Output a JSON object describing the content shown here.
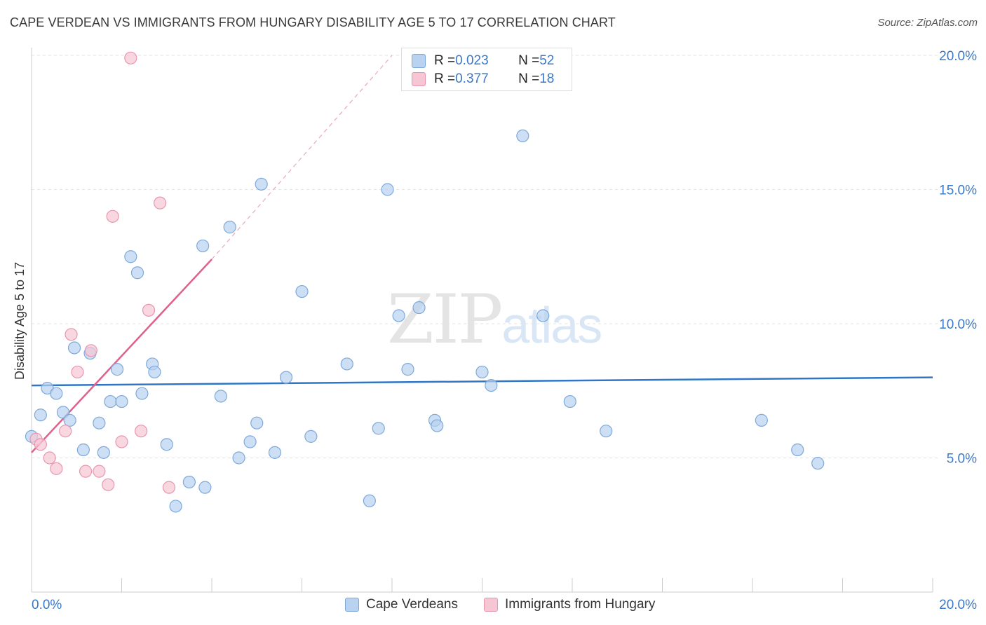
{
  "title": "CAPE VERDEAN VS IMMIGRANTS FROM HUNGARY DISABILITY AGE 5 TO 17 CORRELATION CHART",
  "source": "Source: ZipAtlas.com",
  "watermark": {
    "part1": "ZIP",
    "part2": "atlas"
  },
  "colors": {
    "blue_fill": "#b8d2f0",
    "blue_stroke": "#7ea9dc",
    "blue_line": "#2f76c6",
    "pink_fill": "#f7c6d4",
    "pink_stroke": "#e896b0",
    "pink_line": "#e0608a",
    "axis_text": "#3a78c9",
    "grid": "#e3e3e3"
  },
  "stats": [
    {
      "r_label": "R = ",
      "r_value": "0.023",
      "n_label": "N = ",
      "n_value": "52"
    },
    {
      "r_label": "R = ",
      "r_value": "0.377",
      "n_label": "N = ",
      "n_value": "18"
    }
  ],
  "legend": [
    "Cape Verdeans",
    "Immigrants from Hungary"
  ],
  "chart_data": {
    "type": "scatter",
    "title": "CAPE VERDEAN VS IMMIGRANTS FROM HUNGARY DISABILITY AGE 5 TO 17 CORRELATION CHART",
    "xlabel": "",
    "ylabel": "Disability Age 5 to 17",
    "xlim": [
      0,
      20
    ],
    "ylim": [
      0,
      20.5
    ],
    "x_tick_labels": [
      "0.0%",
      "20.0%"
    ],
    "y_ticks": [
      5,
      10,
      15,
      20
    ],
    "y_tick_labels": [
      "5.0%",
      "10.0%",
      "15.0%",
      "20.0%"
    ],
    "grid": true,
    "legend_position": "bottom",
    "series": [
      {
        "name": "Cape Verdeans",
        "color": "blue",
        "trend": {
          "x": [
            0,
            20
          ],
          "y": [
            7.7,
            8.0
          ],
          "dashed_after": null
        },
        "points": [
          {
            "x": 0.0,
            "y": 5.8
          },
          {
            "x": 0.2,
            "y": 6.6
          },
          {
            "x": 0.35,
            "y": 7.6
          },
          {
            "x": 0.55,
            "y": 7.4
          },
          {
            "x": 0.7,
            "y": 6.7
          },
          {
            "x": 0.85,
            "y": 6.4
          },
          {
            "x": 0.95,
            "y": 9.1
          },
          {
            "x": 1.15,
            "y": 5.3
          },
          {
            "x": 1.3,
            "y": 8.9
          },
          {
            "x": 1.5,
            "y": 6.3
          },
          {
            "x": 1.6,
            "y": 5.2
          },
          {
            "x": 1.75,
            "y": 7.1
          },
          {
            "x": 1.9,
            "y": 8.3
          },
          {
            "x": 2.0,
            "y": 7.1
          },
          {
            "x": 2.2,
            "y": 12.5
          },
          {
            "x": 2.35,
            "y": 11.9
          },
          {
            "x": 2.45,
            "y": 7.4
          },
          {
            "x": 2.68,
            "y": 8.5
          },
          {
            "x": 2.73,
            "y": 8.2
          },
          {
            "x": 3.0,
            "y": 5.5
          },
          {
            "x": 3.2,
            "y": 3.2
          },
          {
            "x": 3.5,
            "y": 4.1
          },
          {
            "x": 3.8,
            "y": 12.9
          },
          {
            "x": 3.85,
            "y": 3.9
          },
          {
            "x": 4.2,
            "y": 7.3
          },
          {
            "x": 4.4,
            "y": 13.6
          },
          {
            "x": 4.6,
            "y": 5.0
          },
          {
            "x": 4.85,
            "y": 5.6
          },
          {
            "x": 5.0,
            "y": 6.3
          },
          {
            "x": 5.1,
            "y": 15.2
          },
          {
            "x": 5.4,
            "y": 5.2
          },
          {
            "x": 5.65,
            "y": 8.0
          },
          {
            "x": 6.0,
            "y": 11.2
          },
          {
            "x": 6.2,
            "y": 5.8
          },
          {
            "x": 7.0,
            "y": 8.5
          },
          {
            "x": 7.5,
            "y": 3.4
          },
          {
            "x": 7.7,
            "y": 6.1
          },
          {
            "x": 7.9,
            "y": 15.0
          },
          {
            "x": 8.15,
            "y": 10.3
          },
          {
            "x": 8.35,
            "y": 8.3
          },
          {
            "x": 8.6,
            "y": 10.6
          },
          {
            "x": 8.95,
            "y": 6.4
          },
          {
            "x": 9.0,
            "y": 6.2
          },
          {
            "x": 10.0,
            "y": 8.2
          },
          {
            "x": 10.2,
            "y": 7.7
          },
          {
            "x": 10.9,
            "y": 17.0
          },
          {
            "x": 11.35,
            "y": 10.3
          },
          {
            "x": 11.95,
            "y": 7.1
          },
          {
            "x": 12.75,
            "y": 6.0
          },
          {
            "x": 16.2,
            "y": 6.4
          },
          {
            "x": 17.0,
            "y": 5.3
          },
          {
            "x": 17.45,
            "y": 4.8
          }
        ]
      },
      {
        "name": "Immigrants from Hungary",
        "color": "pink",
        "trend": {
          "x": [
            0,
            4.0
          ],
          "y": [
            5.2,
            12.4
          ],
          "dashed_to": {
            "x": 8.0,
            "y": 20.0
          }
        },
        "points": [
          {
            "x": 0.1,
            "y": 5.7
          },
          {
            "x": 0.2,
            "y": 5.5
          },
          {
            "x": 0.4,
            "y": 5.0
          },
          {
            "x": 0.55,
            "y": 4.6
          },
          {
            "x": 0.75,
            "y": 6.0
          },
          {
            "x": 0.88,
            "y": 9.6
          },
          {
            "x": 1.02,
            "y": 8.2
          },
          {
            "x": 1.2,
            "y": 4.5
          },
          {
            "x": 1.32,
            "y": 9.0
          },
          {
            "x": 1.5,
            "y": 4.5
          },
          {
            "x": 1.7,
            "y": 4.0
          },
          {
            "x": 1.8,
            "y": 14.0
          },
          {
            "x": 2.0,
            "y": 5.6
          },
          {
            "x": 2.2,
            "y": 19.9
          },
          {
            "x": 2.43,
            "y": 6.0
          },
          {
            "x": 2.6,
            "y": 10.5
          },
          {
            "x": 2.85,
            "y": 14.5
          },
          {
            "x": 3.05,
            "y": 3.9
          }
        ]
      }
    ]
  }
}
